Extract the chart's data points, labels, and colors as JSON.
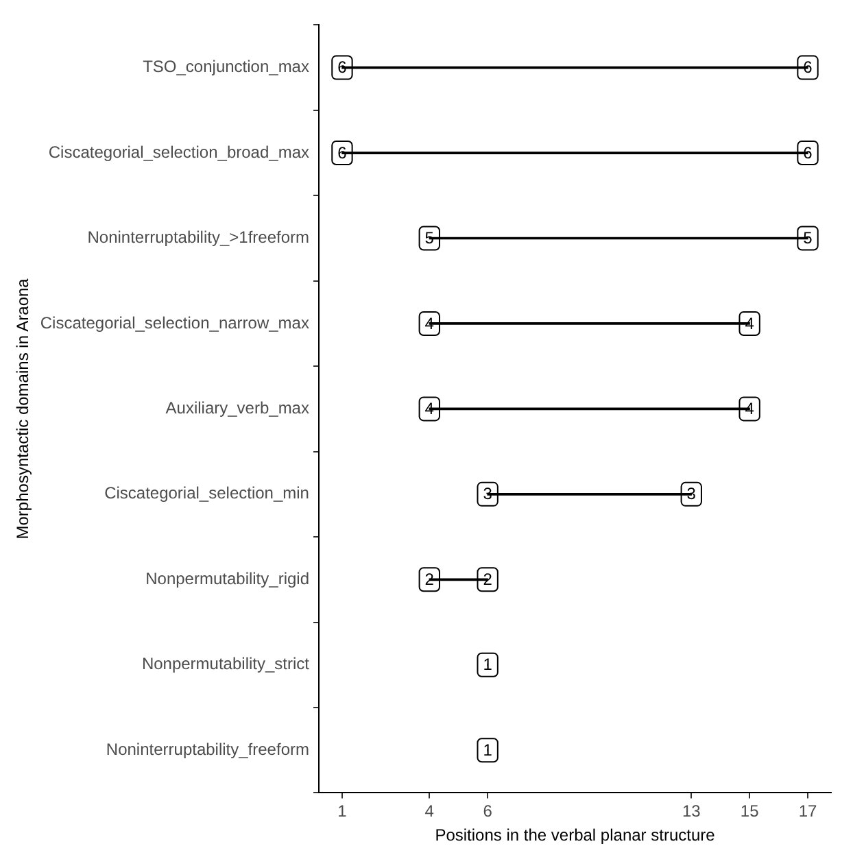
{
  "chart_data": {
    "type": "bar",
    "orientation": "horizontal",
    "xlabel": "Positions in the verbal planar structure",
    "ylabel": "Morphosyntactic domains in Araona",
    "categories": [
      "TSO_conjunction_max",
      "Ciscategorial_selection_broad_max",
      "Noninterruptability_>1freeform",
      "Ciscategorial_selection_narrow_max",
      "Auxiliary_verb_max",
      "Ciscategorial_selection_min",
      "Nonpermutability_rigid",
      "Nonpermutability_strict",
      "Noninterruptability_freeform"
    ],
    "base": [
      1,
      1,
      4,
      4,
      4,
      6,
      4,
      6,
      6
    ],
    "values": [
      16,
      16,
      13,
      11,
      11,
      7,
      2,
      0,
      0
    ],
    "annotations": [
      {
        "text": "6",
        "x": 1,
        "y": "TSO_conjunction_max"
      },
      {
        "text": "6",
        "x": 17,
        "y": "TSO_conjunction_max"
      },
      {
        "text": "6",
        "x": 1,
        "y": "Ciscategorial_selection_broad_max"
      },
      {
        "text": "6",
        "x": 17,
        "y": "Ciscategorial_selection_broad_max"
      },
      {
        "text": "5",
        "x": 4,
        "y": "Noninterruptability_>1freeform"
      },
      {
        "text": "5",
        "x": 17,
        "y": "Noninterruptability_>1freeform"
      },
      {
        "text": "4",
        "x": 4,
        "y": "Ciscategorial_selection_narrow_max"
      },
      {
        "text": "4",
        "x": 15,
        "y": "Ciscategorial_selection_narrow_max"
      },
      {
        "text": "4",
        "x": 4,
        "y": "Auxiliary_verb_max"
      },
      {
        "text": "4",
        "x": 15,
        "y": "Auxiliary_verb_max"
      },
      {
        "text": "3",
        "x": 6,
        "y": "Ciscategorial_selection_min"
      },
      {
        "text": "3",
        "x": 13,
        "y": "Ciscategorial_selection_min"
      },
      {
        "text": "2",
        "x": 4,
        "y": "Nonpermutability_rigid"
      },
      {
        "text": "2",
        "x": 6,
        "y": "Nonpermutability_rigid"
      },
      {
        "text": "1",
        "x": 6,
        "y": "Nonpermutability_strict"
      },
      {
        "text": "1",
        "x": 6,
        "y": "Noninterruptability_freeform"
      }
    ],
    "color": "#000000",
    "xlim": [
      0.2,
      17.8
    ],
    "xticks": [
      1,
      4,
      6,
      13,
      15,
      17
    ]
  }
}
